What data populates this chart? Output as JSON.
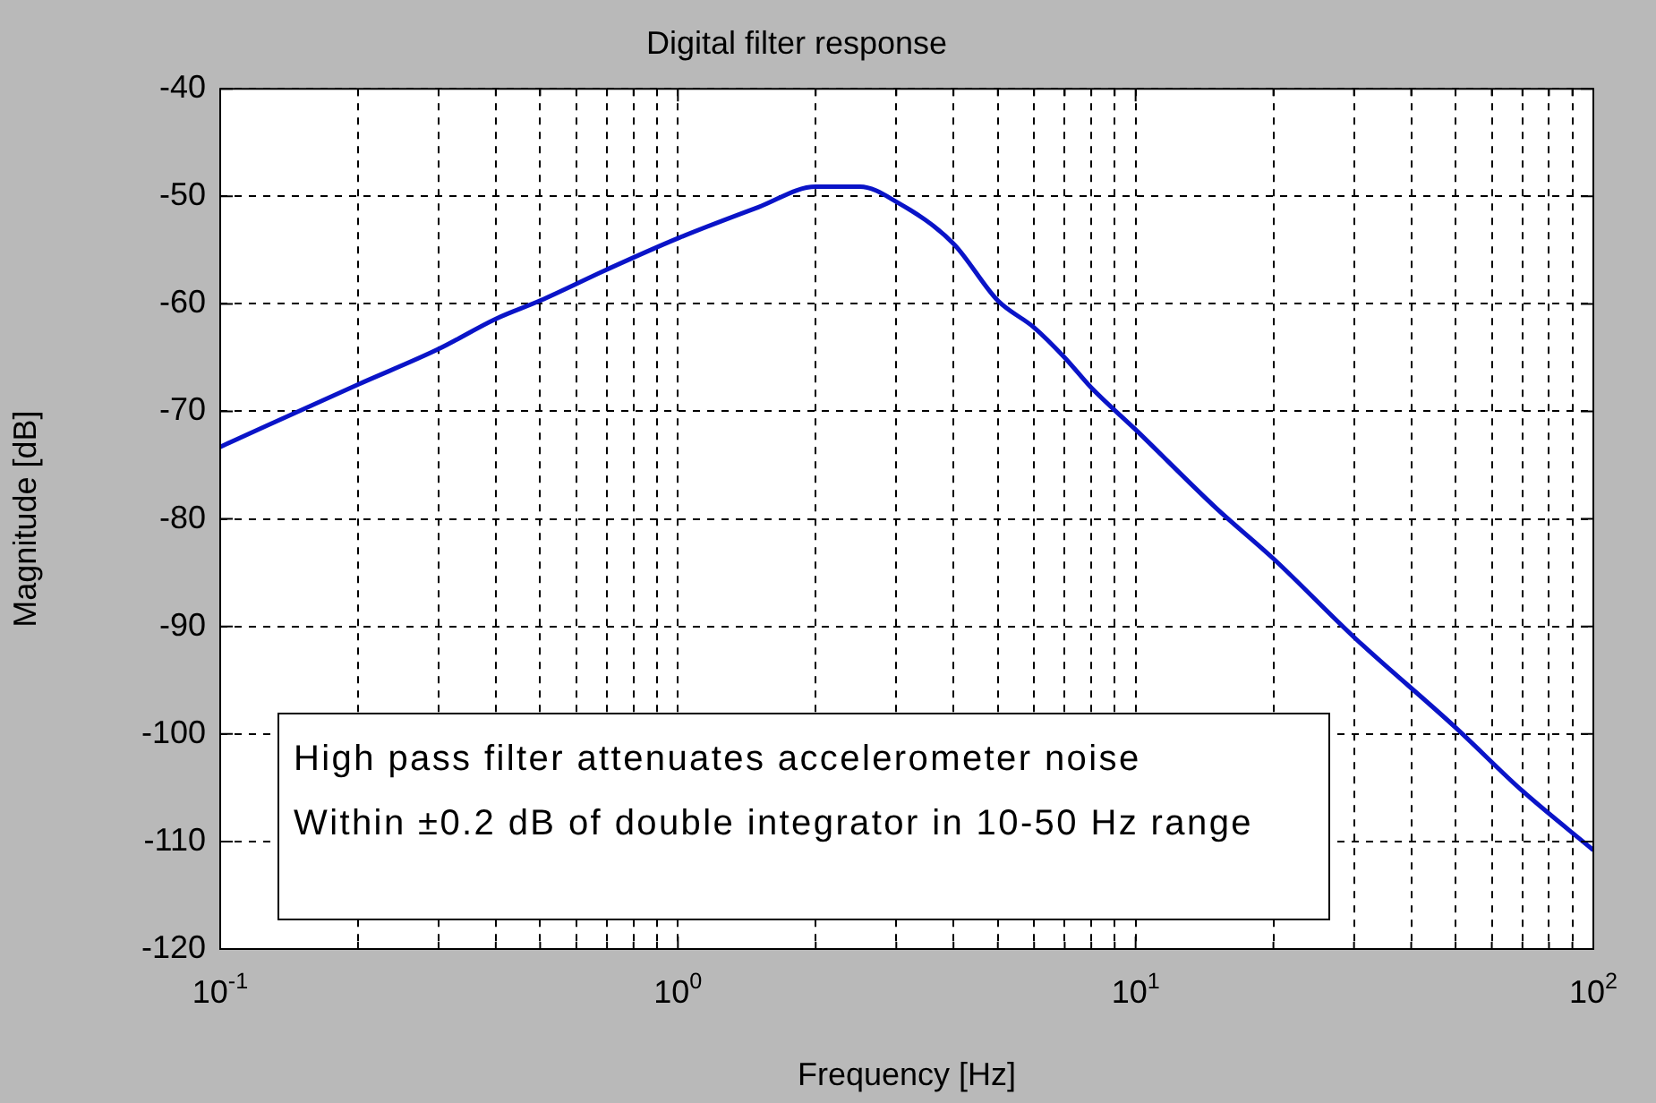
{
  "chart_data": {
    "type": "line",
    "title": "Digital filter response",
    "xlabel": "Frequency [Hz]",
    "ylabel": "Magnitude [dB]",
    "log": "x",
    "grid": true,
    "legend": false,
    "marker": "none",
    "line_style": "solid",
    "annotations": [
      "High pass filter attenuates accelerometer noise",
      "Within ±0.2 dB of double integrator in 10-50 Hz range"
    ],
    "xlim": [
      0.1,
      100
    ],
    "ylim": [
      -120,
      -40
    ],
    "xticks": [
      {
        "value": 0.1,
        "label": "10$^{-1}$"
      },
      {
        "value": 0.2,
        "label": null
      },
      {
        "value": 0.3,
        "label": null
      },
      {
        "value": 0.4,
        "label": null
      },
      {
        "value": 0.5,
        "label": null
      },
      {
        "value": 0.6,
        "label": null
      },
      {
        "value": 0.7,
        "label": null
      },
      {
        "value": 0.8,
        "label": null
      },
      {
        "value": 0.9,
        "label": null
      },
      {
        "value": 1,
        "label": "10$^{0}$"
      },
      {
        "value": 2,
        "label": null
      },
      {
        "value": 3,
        "label": null
      },
      {
        "value": 4,
        "label": null
      },
      {
        "value": 5,
        "label": null
      },
      {
        "value": 6,
        "label": null
      },
      {
        "value": 7,
        "label": null
      },
      {
        "value": 8,
        "label": null
      },
      {
        "value": 9,
        "label": null
      },
      {
        "value": 10,
        "label": "10$^{1}$"
      },
      {
        "value": 20,
        "label": null
      },
      {
        "value": 30,
        "label": null
      },
      {
        "value": 40,
        "label": null
      },
      {
        "value": 50,
        "label": null
      },
      {
        "value": 60,
        "label": null
      },
      {
        "value": 70,
        "label": null
      },
      {
        "value": 80,
        "label": null
      },
      {
        "value": 90,
        "label": null
      },
      {
        "value": 100,
        "label": "10$^{2}$"
      }
    ],
    "yticks": [
      -120,
      -110,
      -100,
      -90,
      -80,
      -70,
      -60,
      -50,
      -40
    ],
    "series": [
      {
        "color": "#0a14c8",
        "x": [
          0.1,
          0.2,
          0.3,
          0.4,
          0.5,
          0.7,
          1,
          1.5,
          2,
          2.5,
          3,
          4,
          5,
          6,
          7,
          8,
          10,
          15,
          20,
          30,
          50,
          70,
          100
        ],
        "values": [
          -73.3,
          -67.5,
          -64.2,
          -61.4,
          -59.7,
          -56.8,
          -53.9,
          -51.0,
          -49.1,
          -49.1,
          -50.5,
          -54.4,
          -59.7,
          -62.2,
          -65.0,
          -67.8,
          -71.7,
          -79.0,
          -83.7,
          -91.0,
          -99.4,
          -105.3,
          -110.8
        ]
      }
    ]
  }
}
